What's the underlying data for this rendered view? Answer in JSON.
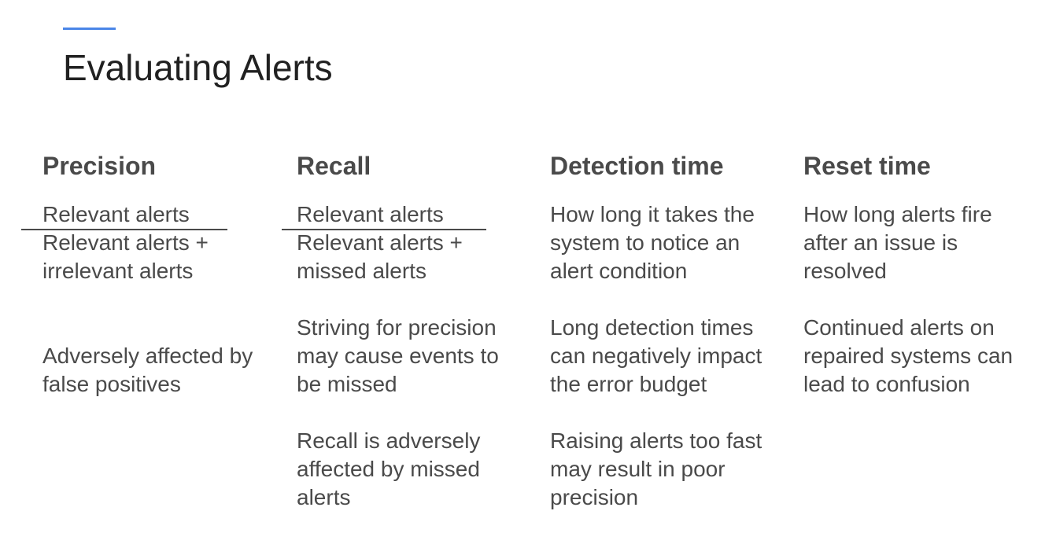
{
  "slide": {
    "title": "Evaluating Alerts",
    "accent_color": "#4a86e8"
  },
  "columns": {
    "precision": {
      "heading": "Precision",
      "formula": {
        "numerator": "Relevant alerts",
        "denominator_line1": "Relevant alerts +",
        "denominator_line2": "irrelevant alerts"
      },
      "notes": [
        [
          "Adversely affected by",
          "false positives"
        ]
      ]
    },
    "recall": {
      "heading": "Recall",
      "formula": {
        "numerator": "Relevant alerts",
        "denominator_line1": "Relevant alerts +",
        "denominator_line2": "missed alerts"
      },
      "notes": [
        [
          "Striving for precision",
          "may cause events to",
          "be missed"
        ],
        [
          "Recall is adversely",
          "affected by missed",
          "alerts"
        ]
      ]
    },
    "detection_time": {
      "heading": "Detection time",
      "description": [
        "How long it takes the",
        "system to notice an",
        "alert condition"
      ],
      "notes": [
        [
          "Long detection times",
          "can negatively impact",
          "the error budget"
        ],
        [
          "Raising alerts too fast",
          "may result in poor",
          "precision"
        ]
      ]
    },
    "reset_time": {
      "heading": "Reset time",
      "description": [
        "How long alerts fire",
        "after an issue is",
        "resolved"
      ],
      "notes": [
        [
          "Continued alerts on",
          "repaired systems can",
          "lead to confusion"
        ]
      ]
    }
  }
}
